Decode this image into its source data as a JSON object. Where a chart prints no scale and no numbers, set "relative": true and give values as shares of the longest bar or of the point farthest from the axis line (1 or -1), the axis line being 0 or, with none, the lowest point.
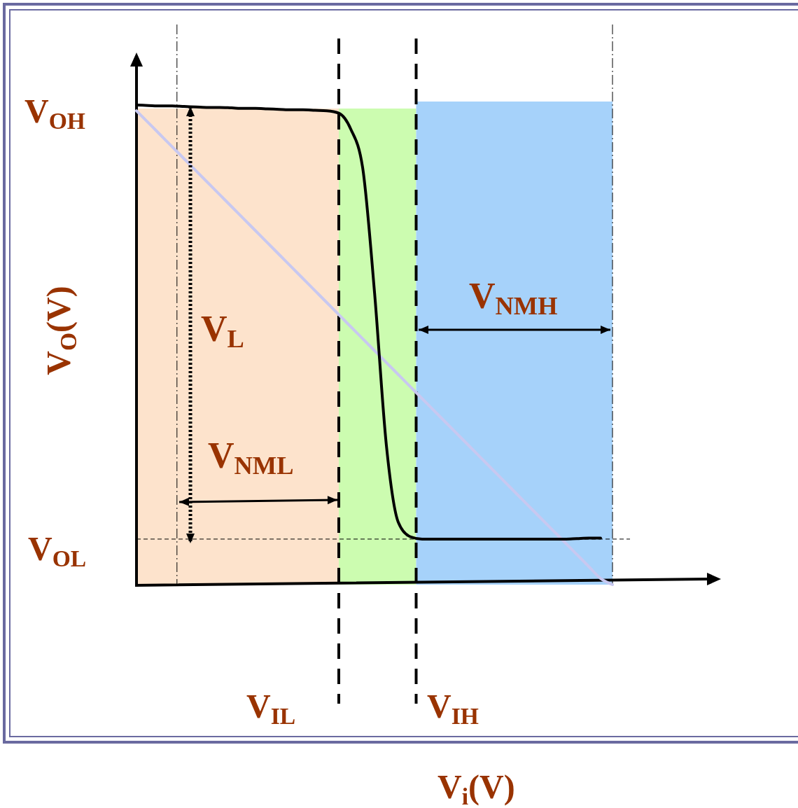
{
  "chart_data": {
    "type": "line",
    "relative": true,
    "ylabel": "V$_{O}$(V)",
    "categories": [
      null,
      null,
      null,
      null,
      null,
      null,
      null,
      null,
      null,
      null,
      null,
      null,
      null,
      null,
      null,
      null,
      null,
      null,
      null,
      null,
      null,
      null,
      null,
      null,
      null,
      null,
      null,
      null,
      null,
      null,
      null,
      null,
      null,
      null,
      null,
      null,
      null,
      null,
      null,
      null,
      null
    ],
    "series": [
      {
        "color": "#000000",
        "values": [
          1.0,
          0.999,
          0.998,
          0.998,
          0.997,
          0.996,
          0.995,
          0.995,
          0.994,
          0.993,
          0.993,
          0.992,
          0.991,
          0.99,
          0.99,
          0.989,
          0.988,
          0.983,
          0.95,
          0.87,
          0.61,
          0.29,
          0.13,
          0.1,
          0.095,
          0.095,
          0.095,
          0.095,
          0.095,
          0.095,
          0.095,
          0.095,
          0.095,
          0.095,
          0.095,
          0.095,
          0.095,
          0.096,
          0.097,
          0.097,
          null
        ]
      },
      {
        "color": "#c8c8f0",
        "values": [
          0.988,
          0.963,
          0.938,
          0.913,
          0.888,
          0.863,
          0.838,
          0.813,
          0.788,
          0.763,
          0.738,
          0.713,
          0.688,
          0.663,
          0.638,
          0.613,
          0.588,
          0.563,
          0.538,
          0.513,
          0.488,
          0.463,
          0.438,
          0.413,
          0.388,
          0.363,
          0.338,
          0.313,
          0.288,
          0.263,
          0.238,
          0.213,
          0.188,
          0.163,
          0.138,
          0.113,
          0.088,
          0.063,
          0.038,
          0.013,
          0.0
        ]
      }
    ],
    "ref_lines": [
      {
        "axis": "y",
        "value": 0.095,
        "label": "V$_{OL}$",
        "line_style": "dashed"
      }
    ],
    "annotations": [
      "V$_{L}$",
      "V$_{NML}$",
      "V$_{NMH}$",
      "V$_{OH}$",
      "V$_{IL}$",
      "V$_{IH}$",
      "V$_{i}$(V)"
    ]
  }
}
